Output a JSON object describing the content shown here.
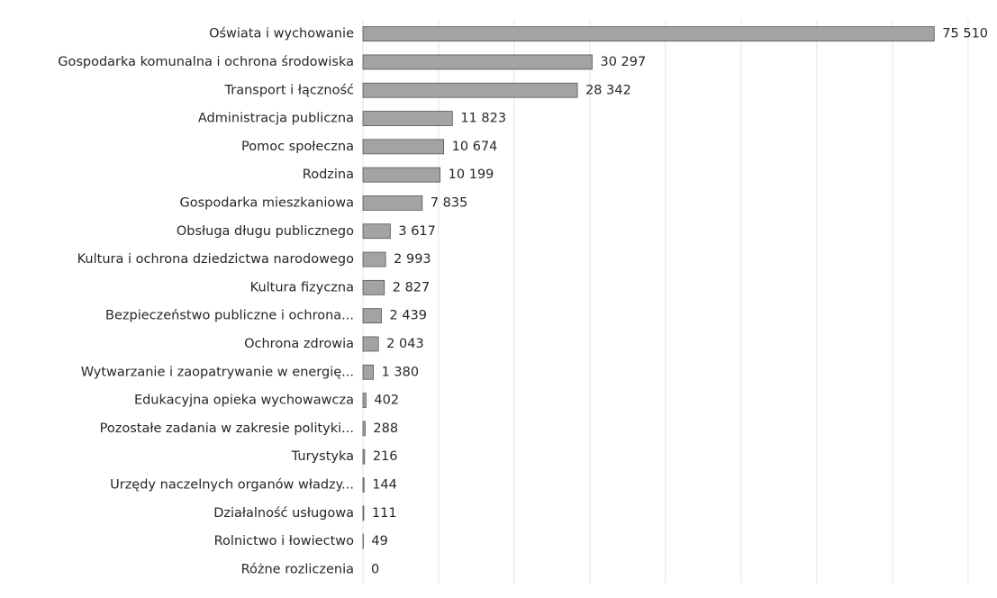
{
  "chart_data": {
    "type": "bar",
    "orientation": "horizontal",
    "categories": [
      "Oświata i wychowanie",
      "Gospodarka komunalna i ochrona środowiska",
      "Transport i łączność",
      "Administracja publiczna",
      "Pomoc społeczna",
      "Rodzina",
      "Gospodarka mieszkaniowa",
      "Obsługa długu publicznego",
      "Kultura i ochrona dziedzictwa narodowego",
      "Kultura fizyczna",
      "Bezpieczeństwo publiczne i ochrona...",
      "Ochrona zdrowia",
      "Wytwarzanie i zaopatrywanie w energię...",
      "Edukacyjna opieka wychowawcza",
      "Pozostałe zadania w zakresie polityki...",
      "Turystyka",
      "Urzędy naczelnych organów władzy...",
      "Działalność usługowa",
      "Rolnictwo i łowiectwo",
      "Różne rozliczenia"
    ],
    "values": [
      75510,
      30297,
      28342,
      11823,
      10674,
      10199,
      7835,
      3617,
      2993,
      2827,
      2439,
      2043,
      1380,
      402,
      288,
      216,
      144,
      111,
      49,
      0
    ],
    "value_labels": [
      "75 510",
      "30 297",
      "28 342",
      "11 823",
      "10 674",
      "10 199",
      "7 835",
      "3 617",
      "2 993",
      "2 827",
      "2 439",
      "2 043",
      "1 380",
      "402",
      "288",
      "216",
      "144",
      "111",
      "49",
      "0"
    ],
    "color": "#a3a3a3",
    "xlim": [
      0,
      80000
    ],
    "xticks": [
      0,
      10000,
      20000,
      30000,
      40000,
      50000,
      60000,
      70000,
      80000
    ],
    "grid": true
  }
}
